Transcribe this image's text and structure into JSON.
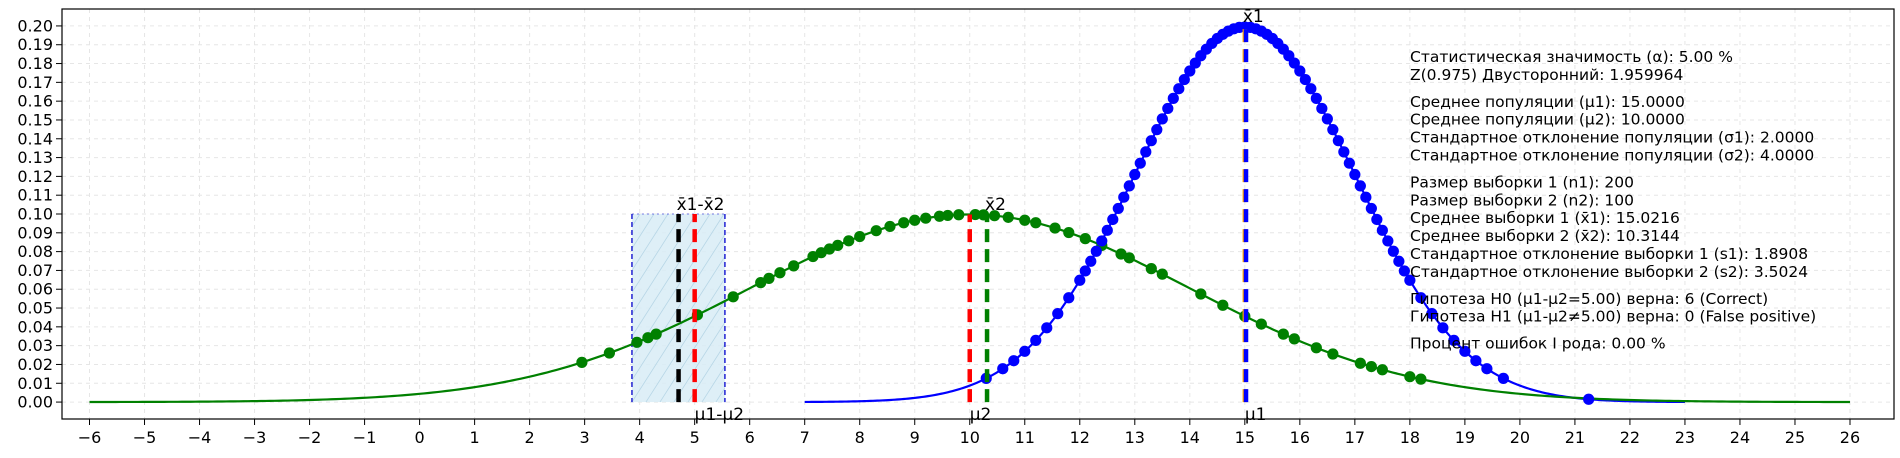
{
  "chart_data": {
    "type": "line",
    "title": "",
    "xlabel": "",
    "ylabel": "",
    "xlim": [
      -6.5,
      26.8
    ],
    "ylim": [
      -0.009,
      0.209
    ],
    "x_ticks": [
      -6,
      -5,
      -4,
      -3,
      -2,
      -1,
      0,
      1,
      2,
      3,
      4,
      5,
      6,
      7,
      8,
      9,
      10,
      11,
      12,
      13,
      14,
      15,
      16,
      17,
      18,
      19,
      20,
      21,
      22,
      23,
      24,
      25,
      26
    ],
    "y_ticks": [
      0.0,
      0.01,
      0.02,
      0.03,
      0.04,
      0.05,
      0.06,
      0.07,
      0.08,
      0.09,
      0.1,
      0.11,
      0.12,
      0.13,
      0.14,
      0.15,
      0.16,
      0.17,
      0.18,
      0.19,
      0.2
    ],
    "grid": true,
    "colors": {
      "pop1": "#0000ff",
      "pop2": "#008000",
      "mu": "#ff0000",
      "band_fill": "#d8ecf6",
      "band_edge": "#0000cc",
      "diff": "#000000",
      "orange": "#ffa500"
    },
    "series": [
      {
        "color": "#0000ff",
        "distribution": "normal",
        "mean": 15,
        "sd": 2,
        "x_range": [
          7,
          23
        ]
      },
      {
        "color": "#008000",
        "distribution": "normal",
        "mean": 10,
        "sd": 4,
        "x_range": [
          -6,
          26
        ]
      }
    ],
    "scatter_pop1": [
      15.0,
      14.9,
      15.1,
      14.8,
      15.2,
      14.7,
      15.3,
      14.6,
      15.4,
      14.5,
      15.5,
      14.4,
      15.6,
      14.3,
      15.7,
      14.2,
      15.8,
      14.1,
      15.9,
      14.0,
      16.0,
      13.9,
      16.1,
      13.8,
      16.2,
      13.7,
      16.3,
      13.6,
      16.4,
      13.5,
      16.5,
      13.4,
      16.6,
      13.3,
      16.7,
      13.2,
      16.8,
      13.1,
      16.9,
      13.0,
      17.0,
      12.9,
      17.1,
      12.8,
      17.2,
      12.7,
      17.3,
      12.6,
      17.4,
      12.5,
      17.5,
      12.4,
      17.6,
      12.3,
      17.7,
      12.2,
      17.8,
      12.1,
      17.9,
      12.0,
      18.0,
      11.8,
      18.2,
      11.6,
      18.4,
      11.4,
      18.6,
      11.2,
      18.8,
      11.0,
      19.0,
      10.8,
      19.2,
      10.6,
      19.4,
      10.3,
      19.7,
      21.25
    ],
    "scatter_pop2": [
      2.95,
      3.45,
      3.95,
      4.15,
      4.3,
      5.05,
      5.7,
      6.2,
      6.35,
      6.55,
      6.8,
      7.15,
      7.3,
      7.45,
      7.6,
      7.8,
      8.0,
      8.3,
      8.55,
      8.8,
      9.0,
      9.2,
      9.45,
      9.6,
      9.8,
      10.1,
      10.25,
      10.45,
      10.7,
      11.0,
      11.2,
      11.55,
      11.8,
      12.1,
      12.4,
      12.75,
      12.9,
      13.3,
      13.5,
      14.2,
      14.6,
      15.0,
      15.3,
      15.7,
      15.9,
      16.3,
      16.6,
      17.1,
      17.3,
      17.5,
      18.0,
      18.2
    ],
    "mu_lines": [
      {
        "x": 5.0,
        "color": "#ff0000"
      },
      {
        "x": 10.0,
        "color": "#ff0000"
      },
      {
        "x": 15.0,
        "color": "#ffa500"
      }
    ],
    "sample_mean_lines": [
      {
        "x": 15.0216,
        "color": "#0000ff"
      },
      {
        "x": 10.3144,
        "color": "#008000"
      },
      {
        "x": 4.7072,
        "color": "#000000"
      }
    ],
    "band": {
      "x0": 3.86,
      "x1": 5.55,
      "y_top": 0.1
    },
    "labels": [
      {
        "text": "x̄1",
        "x": 15.0,
        "y": 0.2,
        "pos": "above"
      },
      {
        "text": "x̄2",
        "x": 10.3144,
        "y": 0.1,
        "pos": "above"
      },
      {
        "text": "x̄1-x̄2",
        "x": 4.7072,
        "y": 0.1,
        "pos": "above"
      },
      {
        "text": "μ1-μ2",
        "x": 5.0,
        "y": 0.0,
        "pos": "below"
      },
      {
        "text": "μ2",
        "x": 10.0,
        "y": 0.0,
        "pos": "below"
      },
      {
        "text": "μ1",
        "x": 15.0,
        "y": 0.0,
        "pos": "below"
      }
    ]
  },
  "info_lines": [
    "Статистическая значимость (α): 5.00 %",
    "Z(0.975) Двусторонний: 1.959964",
    "",
    "Среднее популяции (μ1): 15.0000",
    "Среднее популяции (μ2): 10.0000",
    "Стандартное отклонение популяции (σ1): 2.0000",
    "Стандартное отклонение популяции (σ2): 4.0000",
    "",
    "Размер выборки 1 (n1): 200",
    "Размер выборки 2 (n2): 100",
    "Среднее выборки 1 (x̄1): 15.0216",
    "Среднее выборки 2 (x̄2): 10.3144",
    "Стандартное отклонение выборки 1 (s1): 1.8908",
    "Стандартное отклонение выборки 2 (s2): 3.5024",
    "",
    "Гипотеза H0 (μ1-μ2=5.00) верна: 6 (Correct)",
    "Гипотеза H1 (μ1-μ2≠5.00) верна: 0 (False positive)",
    "",
    "Процент ошибок I рода: 0.00 %"
  ]
}
